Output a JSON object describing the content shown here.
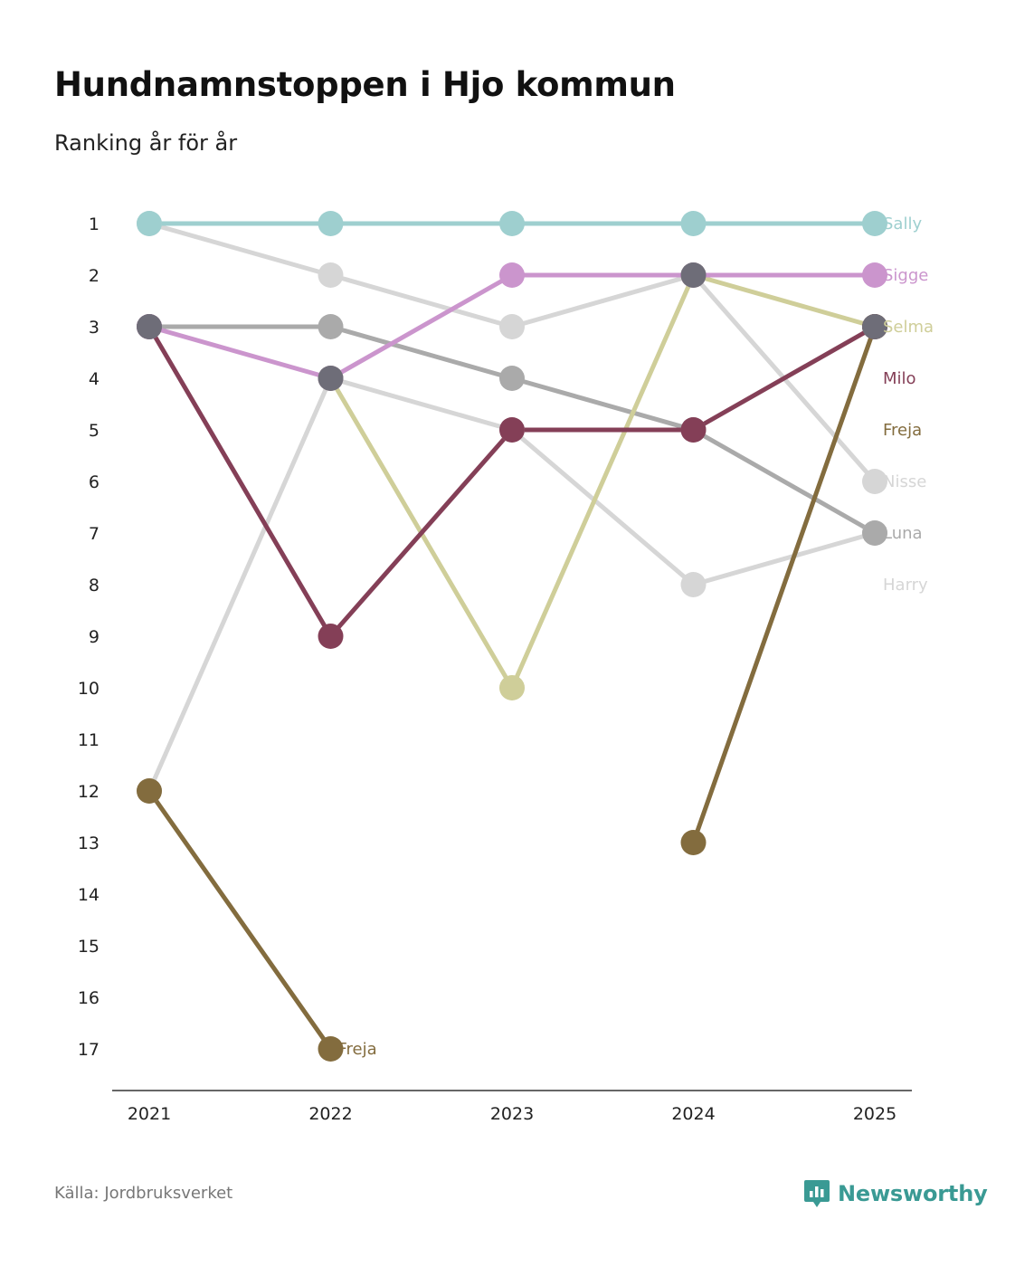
{
  "title": "Hundnamnstoppen i Hjo kommun",
  "subtitle": "Ranking år för år",
  "source": "Källa: Jordbruksverket",
  "brand": {
    "name": "Newsworthy",
    "icon": "newsworthy-logo-icon",
    "color": "#3a9a94"
  },
  "chart_data": {
    "type": "line",
    "subtype": "bump",
    "title": "Hundnamnstoppen i Hjo kommun",
    "subtitle": "Ranking år för år",
    "xlabel": "",
    "ylabel": "",
    "x": [
      "2021",
      "2022",
      "2023",
      "2024",
      "2025"
    ],
    "y_ticks": [
      "1",
      "2",
      "3",
      "4",
      "5",
      "6",
      "7",
      "8",
      "9",
      "10",
      "11",
      "12",
      "13",
      "14",
      "15",
      "16",
      "17"
    ],
    "ylim": [
      1,
      17
    ],
    "y_inverted": true,
    "grid": false,
    "series": [
      {
        "name": "Harry",
        "color": "#d6d6d6",
        "values": [
          12,
          4,
          5,
          8,
          7
        ],
        "end_label": "Harry"
      },
      {
        "name": "Nisse",
        "color": "#d6d6d6",
        "values": [
          1,
          2,
          3,
          2,
          6
        ],
        "end_label": "Nisse"
      },
      {
        "name": "Luna",
        "color": "#aaaaaa",
        "values": [
          3,
          3,
          4,
          5,
          7
        ],
        "end_label": "Luna"
      },
      {
        "name": "Selma",
        "color": "#cfce99",
        "values": [
          null,
          4,
          10,
          2,
          3
        ],
        "end_label": "Selma"
      },
      {
        "name": "Freja",
        "color": "#836c3e",
        "values": [
          12,
          17,
          null,
          13,
          3
        ],
        "end_label": "Freja",
        "mid_label": "Freja"
      },
      {
        "name": "Milo",
        "color": "#843f57",
        "values": [
          3,
          9,
          5,
          5,
          3
        ],
        "end_label": "Milo"
      },
      {
        "name": "Sigge",
        "color": "#cb95cd",
        "values": [
          3,
          4,
          2,
          2,
          2
        ],
        "end_label": "Sigge"
      },
      {
        "name": "Sally",
        "color": "#9ecfcf",
        "values": [
          1,
          1,
          1,
          1,
          1
        ],
        "end_label": "Sally"
      }
    ],
    "overlay_dots": [
      {
        "name": "Luna/Milo/Sigge",
        "color": "#6e6d78",
        "x_index": 0,
        "value": 3
      },
      {
        "name": "Harry/Selma/Sigge",
        "color": "#6e6d78",
        "x_index": 1,
        "value": 4
      },
      {
        "name": "Nisse/Selma/Sigge",
        "color": "#6e6d78",
        "x_index": 3,
        "value": 2
      },
      {
        "name": "Selma/Freja/Milo",
        "color": "#6e6d78",
        "x_index": 4,
        "value": 3
      }
    ]
  }
}
